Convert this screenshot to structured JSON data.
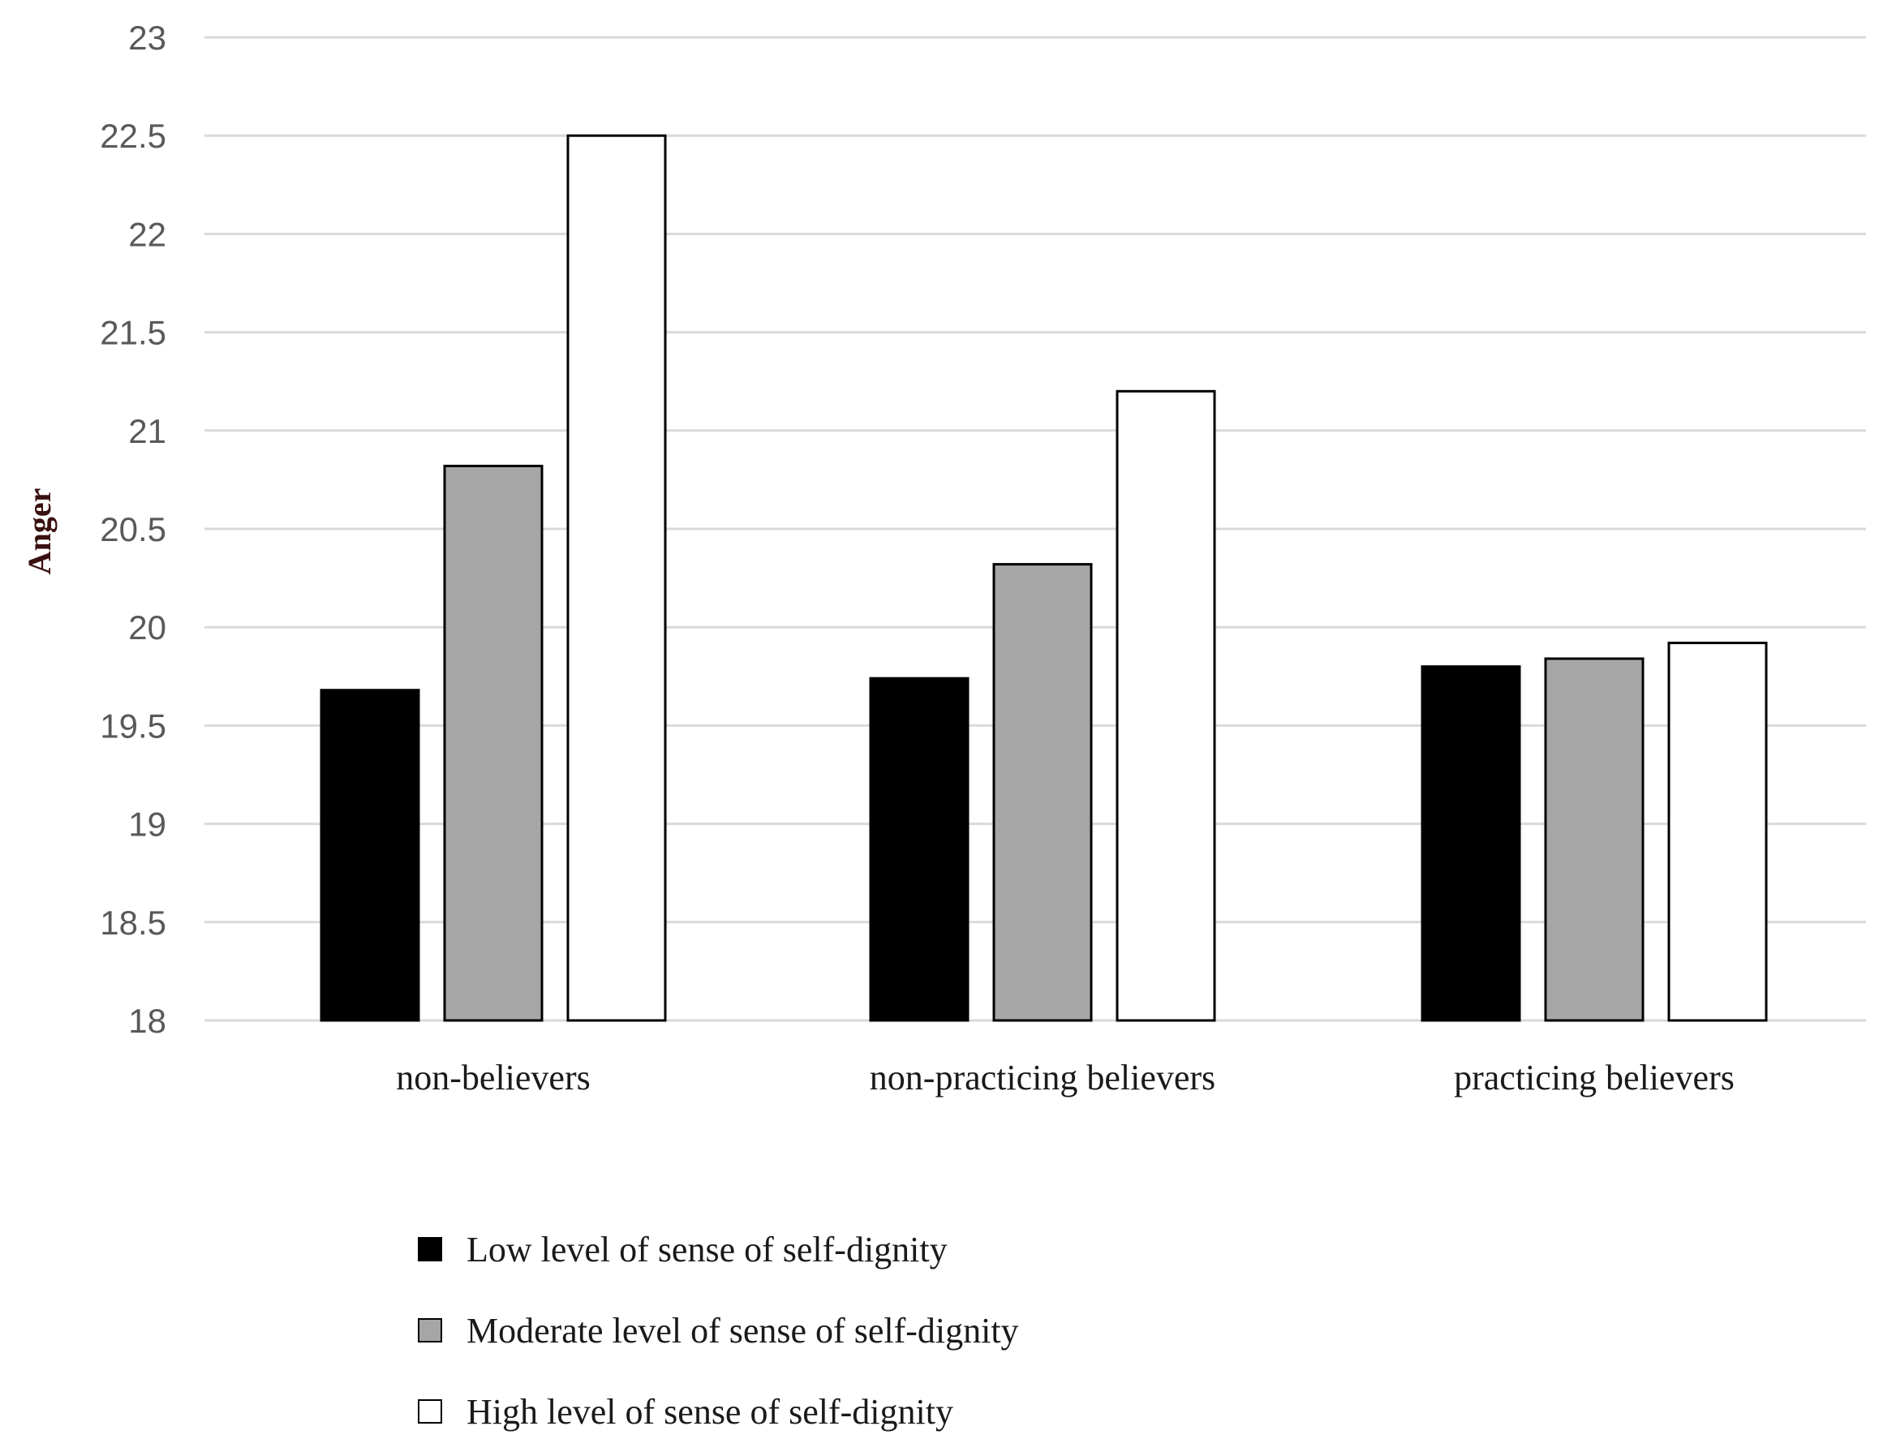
{
  "chart_data": {
    "type": "bar",
    "title": "",
    "xlabel": "",
    "ylabel": "Anger",
    "ylim": [
      18,
      23
    ],
    "yticks": [
      "18",
      "18.5",
      "19",
      "19.5",
      "20",
      "20.5",
      "21",
      "21.5",
      "22",
      "22.5",
      "23"
    ],
    "grid": true,
    "legend_position": "bottom",
    "categories": [
      "non-believers",
      "non-practicing believers",
      "practicing believers"
    ],
    "series": [
      {
        "name": "Low level of sense of self-dignity",
        "color": "#000000",
        "values": [
          19.68,
          19.74,
          19.8
        ]
      },
      {
        "name": "Moderate level of sense of self-dignity",
        "color": "#a6a6a6",
        "values": [
          20.82,
          20.32,
          19.84
        ]
      },
      {
        "name": "High level of sense of self-dignity",
        "color": "#ffffff",
        "values": [
          22.5,
          21.2,
          19.92
        ]
      }
    ]
  }
}
